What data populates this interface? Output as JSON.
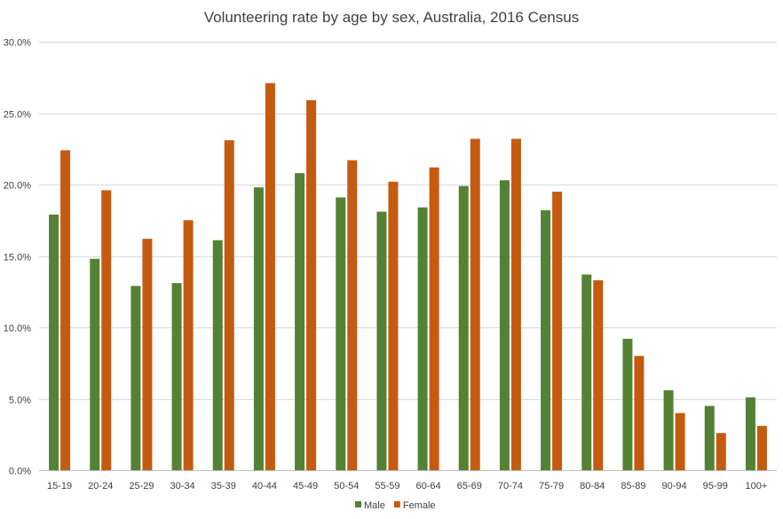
{
  "chart_data": {
    "type": "bar",
    "title": "Volunteering rate by age by sex, Australia, 2016 Census",
    "xlabel": "",
    "ylabel": "",
    "ylim": [
      0,
      30
    ],
    "yticks": [
      "0.0%",
      "5.0%",
      "10.0%",
      "15.0%",
      "20.0%",
      "25.0%",
      "30.0%"
    ],
    "ytick_values": [
      0,
      5,
      10,
      15,
      20,
      25,
      30
    ],
    "grid": true,
    "legend_position": "bottom",
    "categories": [
      "15-19",
      "20-24",
      "25-29",
      "30-34",
      "35-39",
      "40-44",
      "45-49",
      "50-54",
      "55-59",
      "60-64",
      "65-69",
      "70-74",
      "75-79",
      "80-84",
      "85-89",
      "90-94",
      "95-99",
      "100+"
    ],
    "series": [
      {
        "name": "Male",
        "color": "#548235",
        "values": [
          17.9,
          14.8,
          12.9,
          13.1,
          16.1,
          19.8,
          20.8,
          19.1,
          18.1,
          18.4,
          19.9,
          20.3,
          18.2,
          13.7,
          9.2,
          5.6,
          4.5,
          5.1
        ]
      },
      {
        "name": "Female",
        "color": "#c55a11",
        "values": [
          22.4,
          19.6,
          16.2,
          17.5,
          23.1,
          27.1,
          25.9,
          21.7,
          20.2,
          21.2,
          23.2,
          23.2,
          19.5,
          13.3,
          8.0,
          4.0,
          2.6,
          3.1
        ]
      }
    ]
  }
}
